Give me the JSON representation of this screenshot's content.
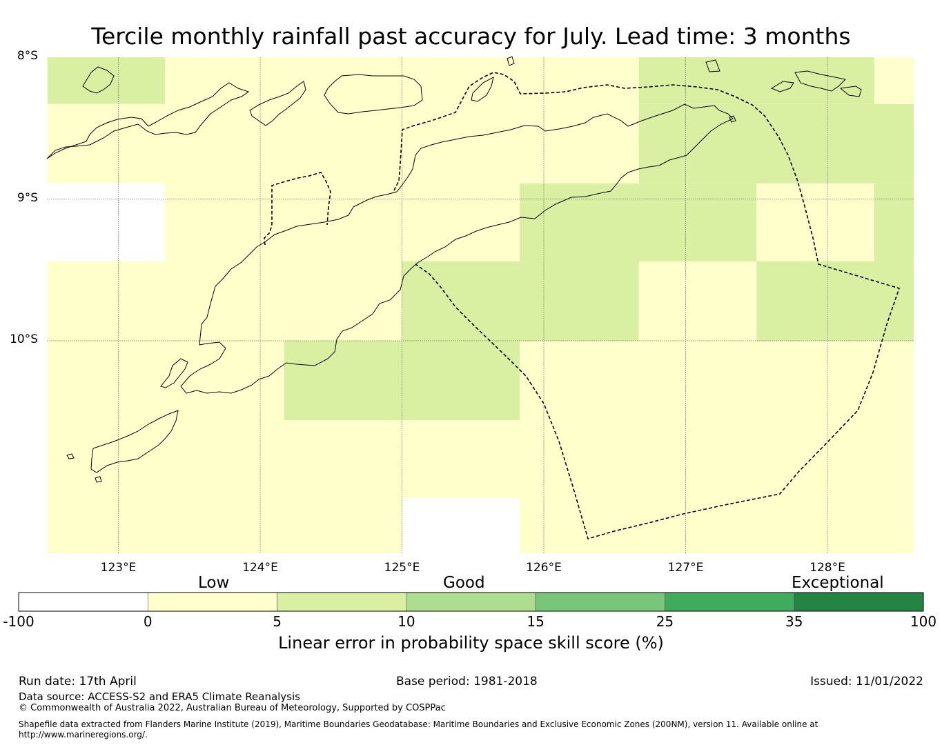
{
  "title": "Tercile monthly rainfall past accuracy for July. Lead time: 3 months",
  "map": {
    "lon_range": [
      122.5,
      128.65
    ],
    "lat_range": [
      -11.5,
      -8.0
    ],
    "lat_ticks": [
      {
        "value": -8,
        "label": "8°S"
      },
      {
        "value": -9,
        "label": "9°S"
      },
      {
        "value": -10,
        "label": "10°S"
      }
    ],
    "lon_ticks": [
      {
        "value": 123,
        "label": "123°E"
      },
      {
        "value": 124,
        "label": "124°E"
      },
      {
        "value": 125,
        "label": "125°E"
      },
      {
        "value": 126,
        "label": "126°E"
      },
      {
        "value": 127,
        "label": "127°E"
      },
      {
        "value": 128,
        "label": "128°E"
      }
    ],
    "grid_lines": true,
    "cells": [
      {
        "lon": [
          122.5,
          123.33
        ],
        "lat": [
          -8.33,
          -8.0
        ],
        "cat": "5-10"
      },
      {
        "lon": [
          123.33,
          126.67
        ],
        "lat": [
          -8.33,
          -8.0
        ],
        "cat": "0-5"
      },
      {
        "lon": [
          126.67,
          128.33
        ],
        "lat": [
          -8.33,
          -8.0
        ],
        "cat": "5-10"
      },
      {
        "lon": [
          128.33,
          128.65
        ],
        "lat": [
          -8.33,
          -8.0
        ],
        "cat": "0-5"
      },
      {
        "lon": [
          122.5,
          126.67
        ],
        "lat": [
          -8.89,
          -8.33
        ],
        "cat": "0-5"
      },
      {
        "lon": [
          126.67,
          128.65
        ],
        "lat": [
          -8.89,
          -8.33
        ],
        "cat": "5-10"
      },
      {
        "lon": [
          122.5,
          123.33
        ],
        "lat": [
          -9.44,
          -8.89
        ],
        "cat": "below-0"
      },
      {
        "lon": [
          123.33,
          125.83
        ],
        "lat": [
          -9.44,
          -8.89
        ],
        "cat": "0-5"
      },
      {
        "lon": [
          125.83,
          127.5
        ],
        "lat": [
          -9.44,
          -8.89
        ],
        "cat": "5-10"
      },
      {
        "lon": [
          127.5,
          128.33
        ],
        "lat": [
          -9.44,
          -8.89
        ],
        "cat": "0-5"
      },
      {
        "lon": [
          128.33,
          128.65
        ],
        "lat": [
          -9.44,
          -8.89
        ],
        "cat": "5-10"
      },
      {
        "lon": [
          122.5,
          125.0
        ],
        "lat": [
          -10.0,
          -9.44
        ],
        "cat": "0-5"
      },
      {
        "lon": [
          125.0,
          126.67
        ],
        "lat": [
          -10.0,
          -9.44
        ],
        "cat": "5-10"
      },
      {
        "lon": [
          126.67,
          127.5
        ],
        "lat": [
          -10.0,
          -9.44
        ],
        "cat": "0-5"
      },
      {
        "lon": [
          127.5,
          128.65
        ],
        "lat": [
          -10.0,
          -9.44
        ],
        "cat": "5-10"
      },
      {
        "lon": [
          122.5,
          124.17
        ],
        "lat": [
          -10.56,
          -10.0
        ],
        "cat": "0-5"
      },
      {
        "lon": [
          124.17,
          125.83
        ],
        "lat": [
          -10.56,
          -10.0
        ],
        "cat": "5-10"
      },
      {
        "lon": [
          125.83,
          128.65
        ],
        "lat": [
          -10.56,
          -10.0
        ],
        "cat": "0-5"
      },
      {
        "lon": [
          122.5,
          128.65
        ],
        "lat": [
          -11.11,
          -10.56
        ],
        "cat": "0-5"
      },
      {
        "lon": [
          122.5,
          125.0
        ],
        "lat": [
          -11.5,
          -11.11
        ],
        "cat": "0-5"
      },
      {
        "lon": [
          125.0,
          125.83
        ],
        "lat": [
          -11.5,
          -11.11
        ],
        "cat": "below-0"
      },
      {
        "lon": [
          125.83,
          128.65
        ],
        "lat": [
          -11.5,
          -11.11
        ],
        "cat": "0-5"
      }
    ]
  },
  "colorbar": {
    "category_labels": [
      "Low",
      "Good",
      "Exceptional"
    ],
    "bins": [
      {
        "from": "-100",
        "to": "0",
        "color": "#ffffff"
      },
      {
        "from": "0",
        "to": "5",
        "color": "#ffffcc"
      },
      {
        "from": "5",
        "to": "10",
        "color": "#d9f0a3"
      },
      {
        "from": "10",
        "to": "15",
        "color": "#addd8e"
      },
      {
        "from": "15",
        "to": "25",
        "color": "#78c679"
      },
      {
        "from": "25",
        "to": "35",
        "color": "#41ab5d"
      },
      {
        "from": "35",
        "to": "100",
        "color": "#238443"
      }
    ],
    "tick_labels": [
      "-100",
      "0",
      "5",
      "10",
      "15",
      "25",
      "35",
      "100"
    ],
    "label": "Linear error in probability space skill score (%)"
  },
  "category_colors": {
    "below-0": "#ffffff",
    "0-5": "#ffffcc",
    "5-10": "#d9f0a3"
  },
  "footer": {
    "run_date": "Run date: 17th April",
    "base_period": "Base period: 1981-2018",
    "issued": "Issued: 11/01/2022",
    "data_source": "Data source: ACCESS-S2 and ERA5 Climate Reanalysis",
    "copyright": "© Commonwealth of Australia 2022, Australian Bureau of Meteorology, Supported by COSPPac",
    "shapefile_note": "Shapefile data extracted from Flanders Marine Institute (2019), Maritime Boundaries Geodatabase: Maritime Boundaries and Exclusive Economic Zones (200NM), version 11. Available online at http://www.marineregions.org/."
  }
}
